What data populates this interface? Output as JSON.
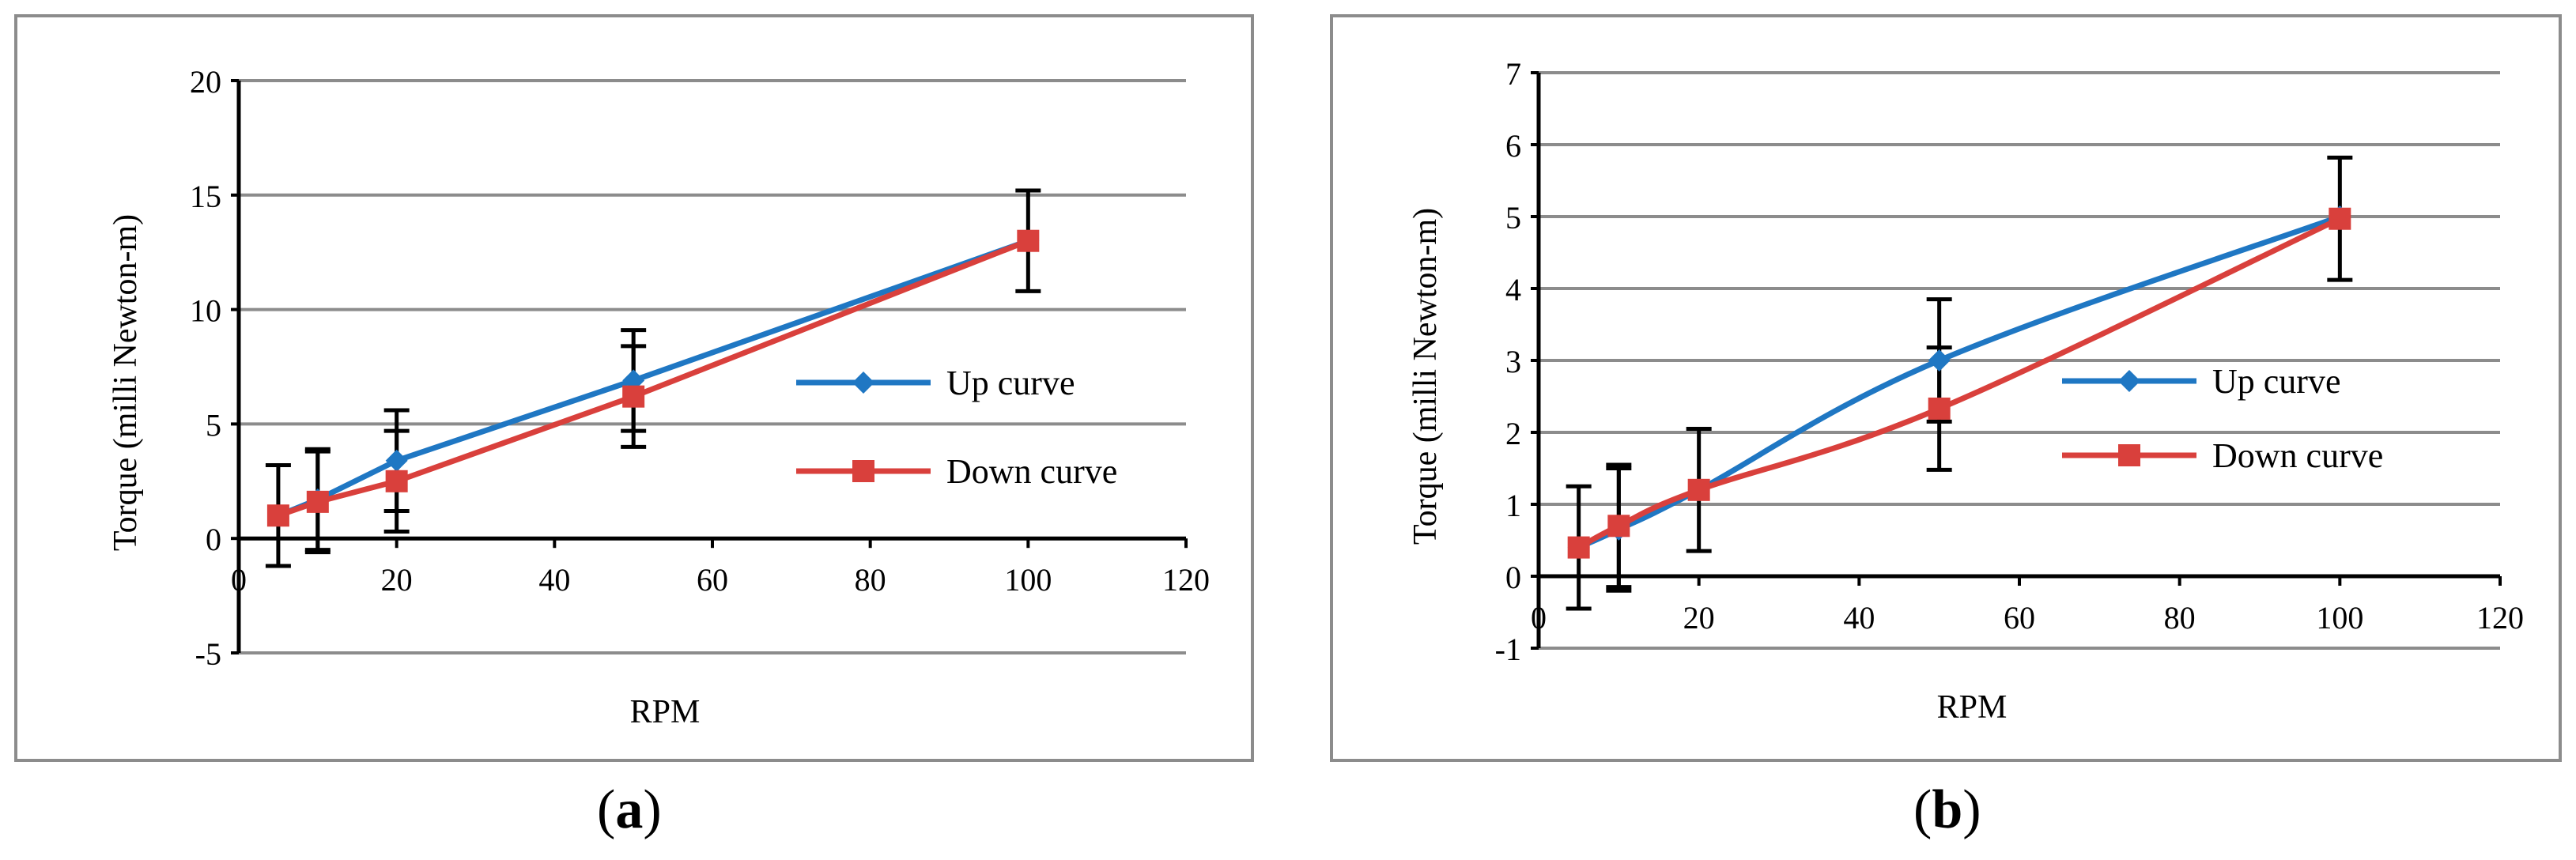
{
  "chart_data": [
    {
      "id": "a",
      "type": "line",
      "panel_label": "a",
      "xlabel": "RPM",
      "ylabel": "Torque (milli Newton-m)",
      "xlim": [
        0,
        120
      ],
      "ylim": [
        -5,
        20
      ],
      "xticks": [
        0,
        20,
        40,
        60,
        80,
        100,
        120
      ],
      "yticks": [
        -5,
        0,
        5,
        10,
        15,
        20
      ],
      "grid": "horizontal",
      "legend_position": "right",
      "series": [
        {
          "name": "Up curve",
          "color": "#1f77c3",
          "marker": "diamond",
          "smooth": false,
          "x": [
            5,
            10,
            20,
            50,
            100
          ],
          "y": [
            1.0,
            1.7,
            3.4,
            6.9,
            13.0
          ],
          "err": [
            0,
            2.2,
            2.2,
            2.2,
            0
          ]
        },
        {
          "name": "Down curve",
          "color": "#d9403c",
          "marker": "square",
          "smooth": false,
          "x": [
            5,
            10,
            20,
            50,
            100
          ],
          "y": [
            1.0,
            1.6,
            2.5,
            6.2,
            13.0
          ],
          "err": [
            2.2,
            2.2,
            2.2,
            2.2,
            2.2
          ]
        }
      ]
    },
    {
      "id": "b",
      "type": "line",
      "panel_label": "b",
      "xlabel": "RPM",
      "ylabel": "Torque (milli Newton-m)",
      "xlim": [
        0,
        120
      ],
      "ylim": [
        -1,
        7
      ],
      "xticks": [
        0,
        20,
        40,
        60,
        80,
        100,
        120
      ],
      "yticks": [
        -1,
        0,
        1,
        2,
        3,
        4,
        5,
        6,
        7
      ],
      "grid": "horizontal",
      "legend_position": "right",
      "series": [
        {
          "name": "Up curve",
          "color": "#1f77c3",
          "marker": "diamond",
          "smooth": true,
          "x": [
            5,
            10,
            20,
            50,
            100
          ],
          "y": [
            0.4,
            0.65,
            1.2,
            3.0,
            5.0
          ],
          "err": [
            0,
            0.85,
            0,
            0.85,
            0
          ]
        },
        {
          "name": "Down curve",
          "color": "#d9403c",
          "marker": "square",
          "smooth": true,
          "x": [
            5,
            10,
            20,
            50,
            100
          ],
          "y": [
            0.4,
            0.7,
            1.2,
            2.33,
            4.97
          ],
          "err": [
            0.85,
            0.85,
            0.85,
            0.85,
            0.85
          ]
        }
      ]
    }
  ]
}
